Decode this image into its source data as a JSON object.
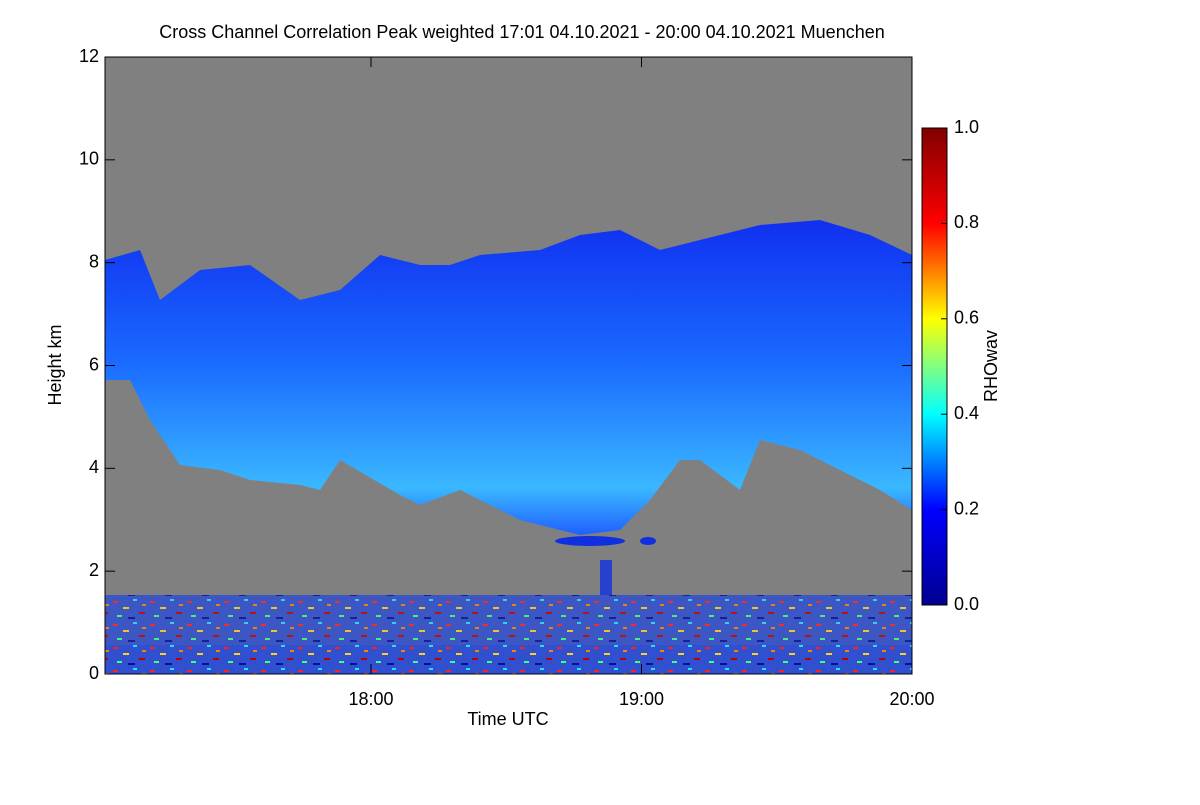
{
  "chart_data": {
    "type": "heatmap",
    "title": "Cross Channel Correlation Peak weighted   17:01 04.10.2021 - 20:00 04.10.2021 Muenchen",
    "x_label": "Time UTC",
    "y_label": "Height km",
    "xlim": [
      17.0167,
      20.0
    ],
    "xticks": [
      {
        "value": 18,
        "label": "18:00"
      },
      {
        "value": 19,
        "label": "19:00"
      },
      {
        "value": 20,
        "label": "20:00"
      }
    ],
    "ylim": [
      0,
      12
    ],
    "yticks": [
      0,
      2,
      4,
      6,
      8,
      10,
      12
    ],
    "colorbar": {
      "label": "RHOwav",
      "lim": [
        0,
        1
      ],
      "ticks": [
        {
          "value": 0,
          "label": "0.0"
        },
        {
          "value": 0.2,
          "label": "0.2"
        },
        {
          "value": 0.4,
          "label": "0.4"
        },
        {
          "value": 0.6,
          "label": "0.6"
        },
        {
          "value": 0.8,
          "label": "0.8"
        },
        {
          "value": 1,
          "label": "1.0"
        }
      ],
      "colors": [
        "#00008f",
        "#0000ff",
        "#00ffff",
        "#ffff00",
        "#ff0000",
        "#800000"
      ]
    }
  }
}
